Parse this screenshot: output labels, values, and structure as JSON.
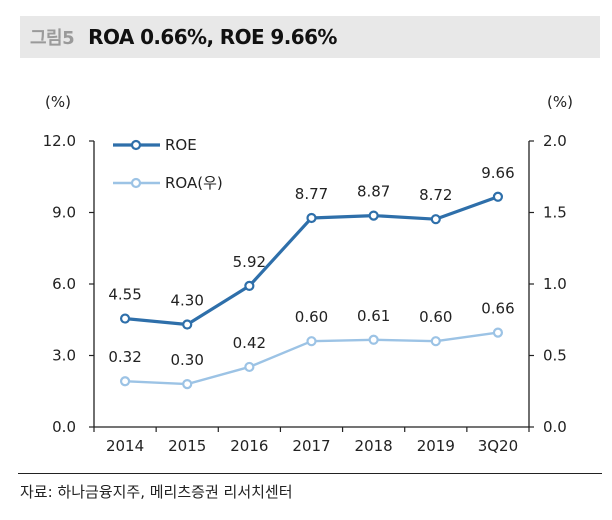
{
  "header": {
    "figure_number": "그림5",
    "title": "ROA 0.66%, ROE 9.66%"
  },
  "footer": {
    "source": "자료: 하나금융지주, 메리츠증권 리서치센터"
  },
  "colors": {
    "roe": "#2e6faa",
    "roa": "#9cc3e5",
    "axis": "#222222",
    "title_bg": "#e8e8e8"
  },
  "chart_data": {
    "type": "line",
    "title": "ROA 0.66%, ROE 9.66%",
    "categories": [
      "2014",
      "2015",
      "2016",
      "2017",
      "2018",
      "2019",
      "3Q20"
    ],
    "series": [
      {
        "name": "ROE",
        "axis": "left",
        "values": [
          4.55,
          4.3,
          5.92,
          8.77,
          8.87,
          8.72,
          9.66
        ],
        "labels": [
          "4.55",
          "4.30",
          "5.92",
          "8.77",
          "8.87",
          "8.72",
          "9.66"
        ]
      },
      {
        "name": "ROA(우)",
        "axis": "right",
        "values": [
          0.32,
          0.3,
          0.42,
          0.6,
          0.61,
          0.6,
          0.66
        ],
        "labels": [
          "0.32",
          "0.30",
          "0.42",
          "0.60",
          "0.61",
          "0.60",
          "0.66"
        ]
      }
    ],
    "y_left": {
      "label": "(%)",
      "range": [
        0,
        12
      ],
      "ticks": [
        "0.0",
        "3.0",
        "6.0",
        "9.0",
        "12.0"
      ],
      "tick_values": [
        0,
        3,
        6,
        9,
        12
      ]
    },
    "y_right": {
      "label": "(%)",
      "range": [
        0,
        2
      ],
      "ticks": [
        "0.0",
        "0.5",
        "1.0",
        "1.5",
        "2.0"
      ],
      "tick_values": [
        0,
        0.5,
        1,
        1.5,
        2
      ]
    },
    "legend": {
      "position": "top-left",
      "entries": [
        "ROE",
        "ROA(우)"
      ]
    },
    "grid": false,
    "markers": "hollow-circle"
  }
}
